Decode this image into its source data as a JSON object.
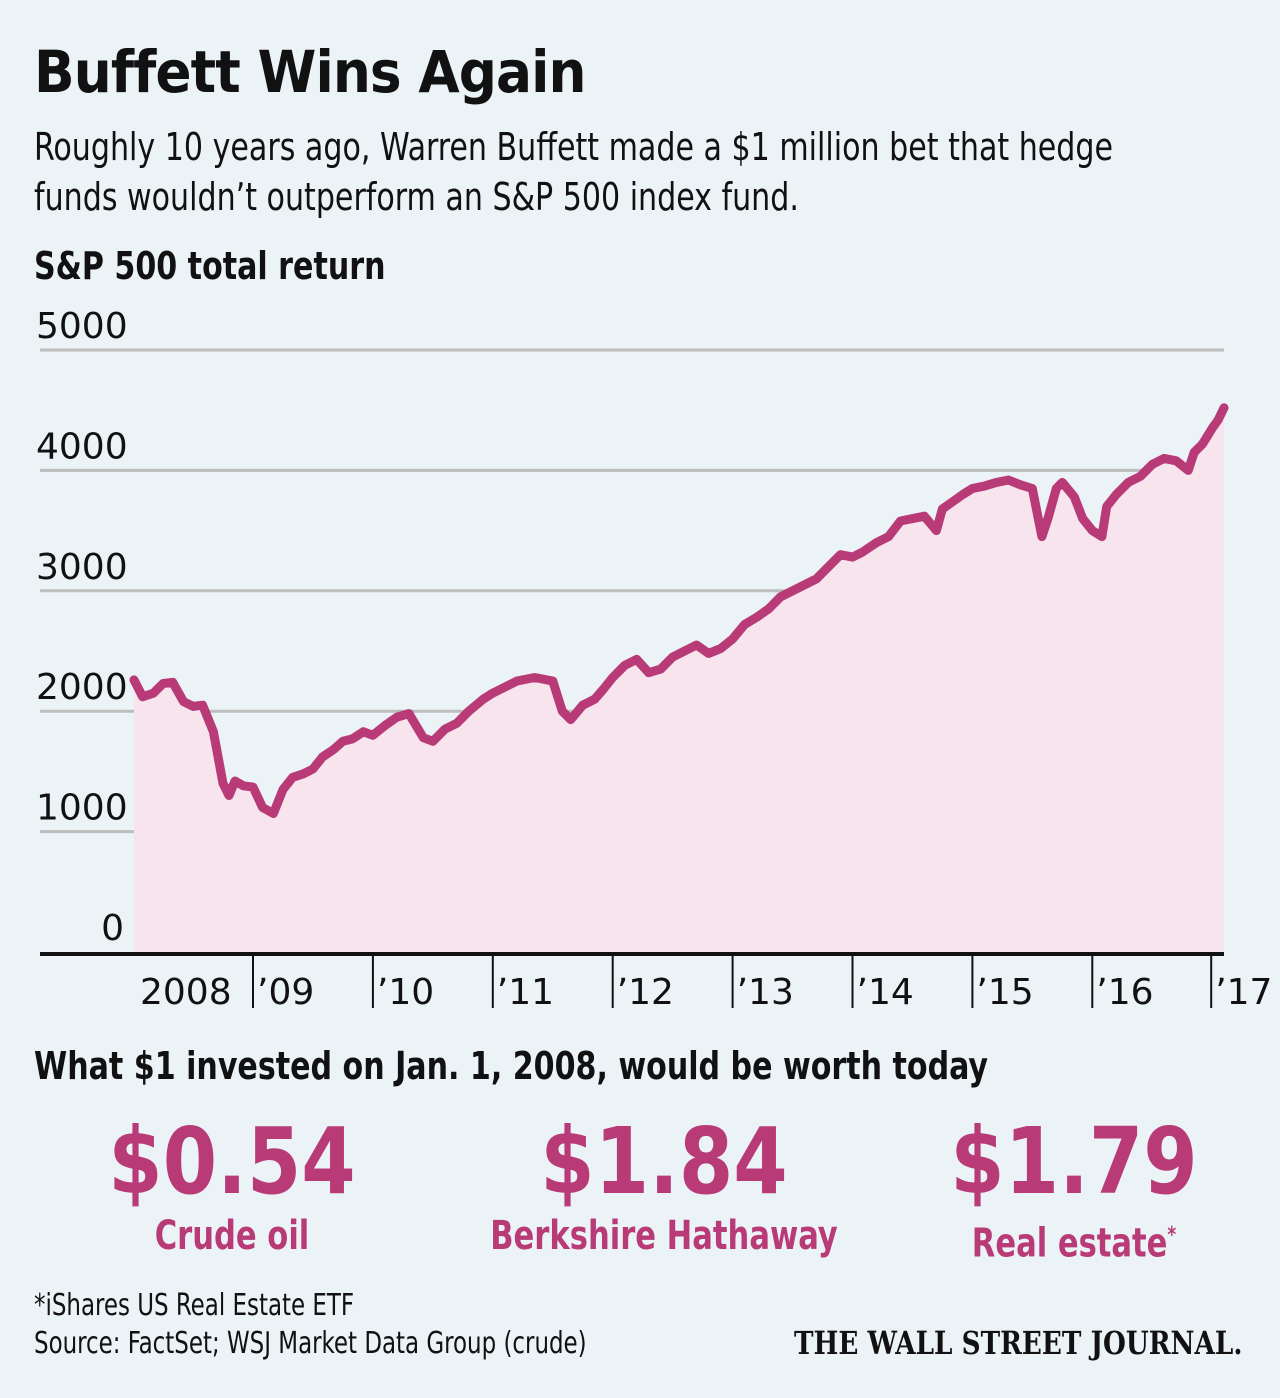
{
  "header": {
    "title": "Buffett Wins Again",
    "subtitle": "Roughly 10 years ago, Warren Buffett made a $1 million bet that hedge funds wouldn’t outperform an S&P 500 index fund."
  },
  "chart_data": {
    "type": "area",
    "title": "S&P 500 total return",
    "xlabel": "",
    "ylabel": "",
    "ylim": [
      0,
      5000
    ],
    "xlim": [
      2008.0,
      2017.1
    ],
    "yticks": [
      "0",
      "1000",
      "2000",
      "3000",
      "4000",
      "5000"
    ],
    "xticks": [
      "2008",
      "’09",
      "’10",
      "’11",
      "’12",
      "’13",
      "’14",
      "’15",
      "’16",
      "’17"
    ],
    "grid": true,
    "legend": "none",
    "colors": {
      "line": "#b83b78",
      "fill": "#f7e4ed",
      "grid": "#bdbdbd",
      "axis": "#111111"
    },
    "series": [
      {
        "name": "S&P 500 total return",
        "x": [
          2008.0,
          2008.08,
          2008.17,
          2008.25,
          2008.33,
          2008.42,
          2008.5,
          2008.58,
          2008.67,
          2008.75,
          2008.8,
          2008.85,
          2008.92,
          2009.0,
          2009.08,
          2009.17,
          2009.25,
          2009.33,
          2009.42,
          2009.5,
          2009.58,
          2009.67,
          2009.75,
          2009.83,
          2009.92,
          2010.0,
          2010.1,
          2010.2,
          2010.3,
          2010.42,
          2010.5,
          2010.6,
          2010.7,
          2010.8,
          2010.92,
          2011.0,
          2011.1,
          2011.2,
          2011.35,
          2011.5,
          2011.58,
          2011.65,
          2011.75,
          2011.85,
          2011.92,
          2012.0,
          2012.1,
          2012.2,
          2012.3,
          2012.4,
          2012.5,
          2012.6,
          2012.7,
          2012.8,
          2012.9,
          2013.0,
          2013.1,
          2013.2,
          2013.3,
          2013.4,
          2013.5,
          2013.6,
          2013.7,
          2013.8,
          2013.9,
          2014.0,
          2014.08,
          2014.2,
          2014.3,
          2014.4,
          2014.5,
          2014.6,
          2014.7,
          2014.75,
          2014.85,
          2014.92,
          2015.0,
          2015.1,
          2015.2,
          2015.3,
          2015.4,
          2015.5,
          2015.58,
          2015.63,
          2015.7,
          2015.75,
          2015.85,
          2015.92,
          2016.0,
          2016.08,
          2016.12,
          2016.2,
          2016.3,
          2016.4,
          2016.5,
          2016.6,
          2016.7,
          2016.8,
          2016.85,
          2016.92,
          2017.0,
          2017.05,
          2017.1
        ],
        "values": [
          2260,
          2120,
          2150,
          2230,
          2240,
          2080,
          2040,
          2050,
          1830,
          1400,
          1300,
          1420,
          1380,
          1370,
          1200,
          1150,
          1350,
          1450,
          1480,
          1520,
          1620,
          1680,
          1750,
          1770,
          1830,
          1800,
          1880,
          1950,
          1980,
          1780,
          1750,
          1850,
          1900,
          2000,
          2100,
          2150,
          2200,
          2250,
          2280,
          2250,
          2000,
          1930,
          2050,
          2100,
          2180,
          2280,
          2380,
          2430,
          2320,
          2350,
          2450,
          2500,
          2550,
          2480,
          2520,
          2600,
          2720,
          2780,
          2850,
          2950,
          3000,
          3050,
          3100,
          3200,
          3300,
          3280,
          3320,
          3400,
          3450,
          3580,
          3600,
          3620,
          3500,
          3680,
          3750,
          3800,
          3850,
          3870,
          3900,
          3920,
          3880,
          3850,
          3450,
          3600,
          3850,
          3900,
          3780,
          3600,
          3500,
          3450,
          3700,
          3800,
          3900,
          3950,
          4050,
          4100,
          4080,
          4000,
          4150,
          4220,
          4350,
          4420,
          4520
        ]
      }
    ]
  },
  "worth": {
    "heading": "What $1 invested on Jan. 1, 2008, would be worth today",
    "items": [
      {
        "value": "$0.54",
        "label": "Crude oil",
        "footnote": ""
      },
      {
        "value": "$1.84",
        "label": "Berkshire Hathaway",
        "footnote": ""
      },
      {
        "value": "$1.79",
        "label": "Real estate",
        "footnote": "*"
      }
    ]
  },
  "footer": {
    "note": "*iShares US Real Estate ETF",
    "source": "Source: FactSet; WSJ Market Data Group (crude)",
    "logo": "THE WALL STREET JOURNAL."
  }
}
